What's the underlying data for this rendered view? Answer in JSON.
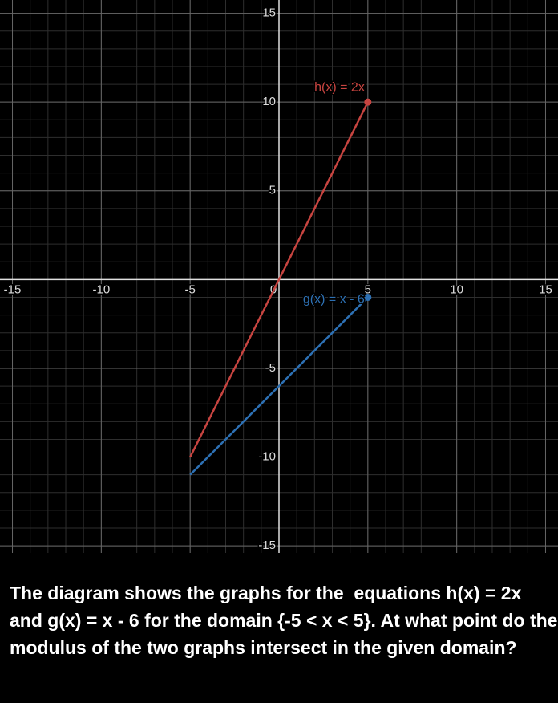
{
  "chart_data": {
    "type": "line",
    "xlim": [
      -15.7,
      15.7
    ],
    "ylim": [
      -15.4,
      15.75
    ],
    "xticks": [
      -15,
      -10,
      -5,
      0,
      5,
      10,
      15
    ],
    "yticks": [
      -15,
      -10,
      -5,
      5,
      10,
      15
    ],
    "minor_step": 1,
    "grid": true,
    "x": [
      -5,
      5
    ],
    "series": [
      {
        "name": "h(x) = 2x",
        "color": "#c74440",
        "values": [
          -10,
          10
        ]
      },
      {
        "name": "g(x) = x - 6",
        "color": "#2d70b3",
        "values": [
          -11,
          -1
        ]
      }
    ]
  },
  "question": "The diagram shows the graphs for the  equations h(x) = 2x and g(x) = x - 6 for the domain {-5 < x < 5}. At what point do the modulus of the two graphs intersect in the given domain?"
}
